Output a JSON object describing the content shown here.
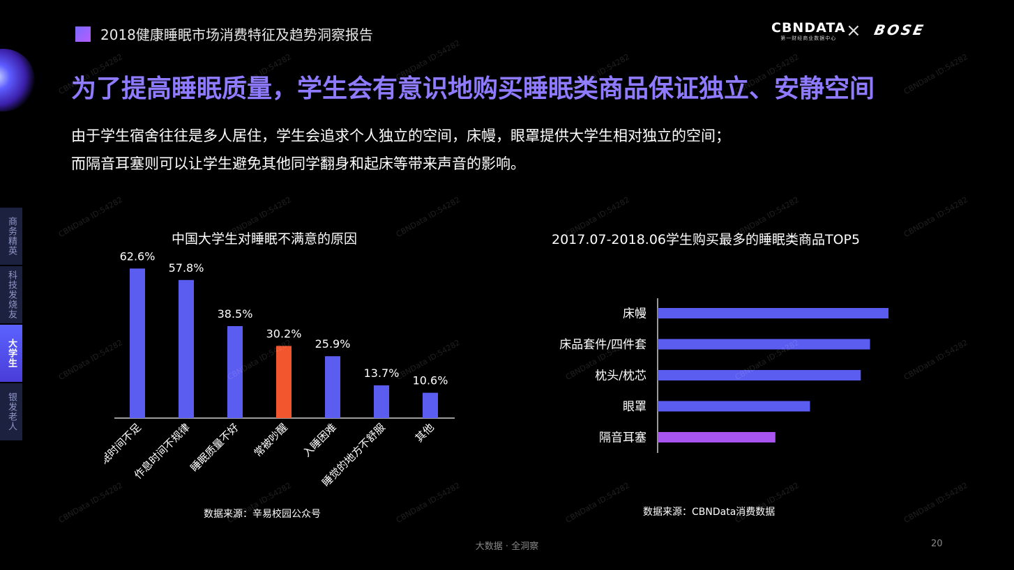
{
  "header": {
    "report_title": "2018健康睡眠市场消费特征及趋势洞察报告",
    "logo_cbn": "CBNDATA",
    "logo_cbn_sub": "第一财经商业数据中心",
    "logo_x": "×",
    "logo_bose": "BOSE"
  },
  "headline": "为了提高睡眠质量，学生会有意识地购买睡眠类商品保证独立、安静空间",
  "description": [
    "由于学生宿舍往往是多人居住，学生会追求个人独立的空间，床幔，眼罩提供大学生相对独立的空间；",
    "而隔音耳塞则可以让学生避免其他同学翻身和起床等带来声音的影响。"
  ],
  "sidenav": [
    {
      "label": "商务精英",
      "active": false
    },
    {
      "label": "科技发烧友",
      "active": false
    },
    {
      "label": "大学生",
      "active": true
    },
    {
      "label": "银发老人",
      "active": false
    }
  ],
  "watermark": "CBNData ID:54282",
  "chart_data": [
    {
      "type": "bar",
      "title": "中国大学生对睡眠不满意的原因",
      "categories": [
        "睡眠时间不足",
        "作息时间不规律",
        "睡眠质量不好",
        "常被吵醒",
        "入睡困难",
        "睡觉的地方不舒服",
        "其他"
      ],
      "values": [
        62.6,
        57.8,
        38.5,
        30.2,
        25.9,
        13.7,
        10.6
      ],
      "value_labels": [
        "62.6%",
        "57.8%",
        "38.5%",
        "30.2%",
        "25.9%",
        "13.7%",
        "10.6%"
      ],
      "unit": "%",
      "ylim": [
        0,
        70
      ],
      "highlight_index": 3,
      "colors": {
        "bar": "#5b5cf0",
        "highlight": "#f2562f"
      },
      "source": "数据来源：辛易校园公众号"
    },
    {
      "type": "bar",
      "orientation": "horizontal",
      "title": "2017.07-2018.06学生购买最多的睡眠类商品TOP5",
      "categories": [
        "床幔",
        "床品套件/四件套",
        "枕头/枕芯",
        "眼罩",
        "隔音耳塞"
      ],
      "values": [
        100,
        92,
        88,
        66,
        51
      ],
      "xlim": [
        0,
        100
      ],
      "highlight_index": 4,
      "colors": {
        "bar": "#5b5cf0",
        "highlight": "#a855f0"
      },
      "source": "数据来源：CBNData消费数据"
    }
  ],
  "footer": {
    "tagline": "大数据 · 全洞察",
    "page": "20"
  }
}
